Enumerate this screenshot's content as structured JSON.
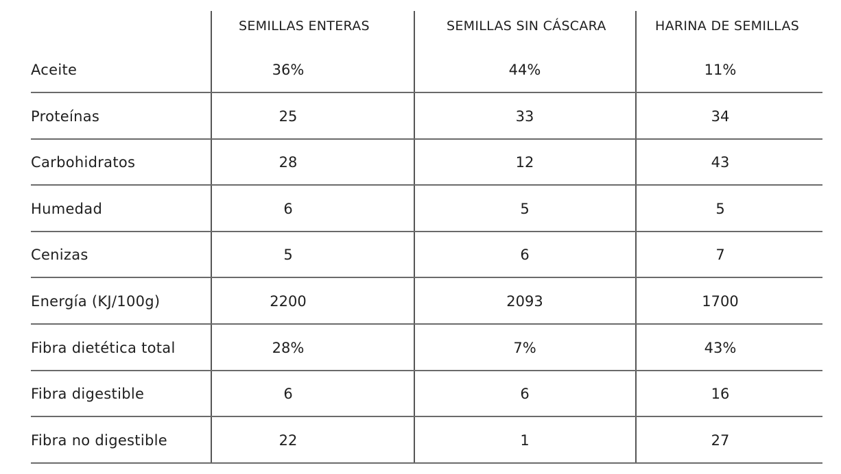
{
  "chart_data": {
    "type": "table",
    "columns": [
      "SEMILLAS ENTERAS",
      "SEMILLAS SIN CÁSCARA",
      "HARINA DE SEMILLAS"
    ],
    "rows": [
      {
        "label": "Aceite",
        "values": [
          "36%",
          "44%",
          "11%"
        ]
      },
      {
        "label": "Proteínas",
        "values": [
          "25",
          "33",
          "34"
        ]
      },
      {
        "label": "Carbohidratos",
        "values": [
          "28",
          "12",
          "43"
        ]
      },
      {
        "label": "Humedad",
        "values": [
          "6",
          "5",
          "5"
        ]
      },
      {
        "label": "Cenizas",
        "values": [
          "5",
          "6",
          "7"
        ]
      },
      {
        "label": "Energía (KJ/100g)",
        "values": [
          "2200",
          "2093",
          "1700"
        ]
      },
      {
        "label": "Fibra dietética total",
        "values": [
          "28%",
          "7%",
          "43%"
        ]
      },
      {
        "label": "Fibra digestible",
        "values": [
          "6",
          "6",
          "16"
        ]
      },
      {
        "label": "Fibra no digestible",
        "values": [
          "22",
          "1",
          "27"
        ]
      }
    ]
  }
}
